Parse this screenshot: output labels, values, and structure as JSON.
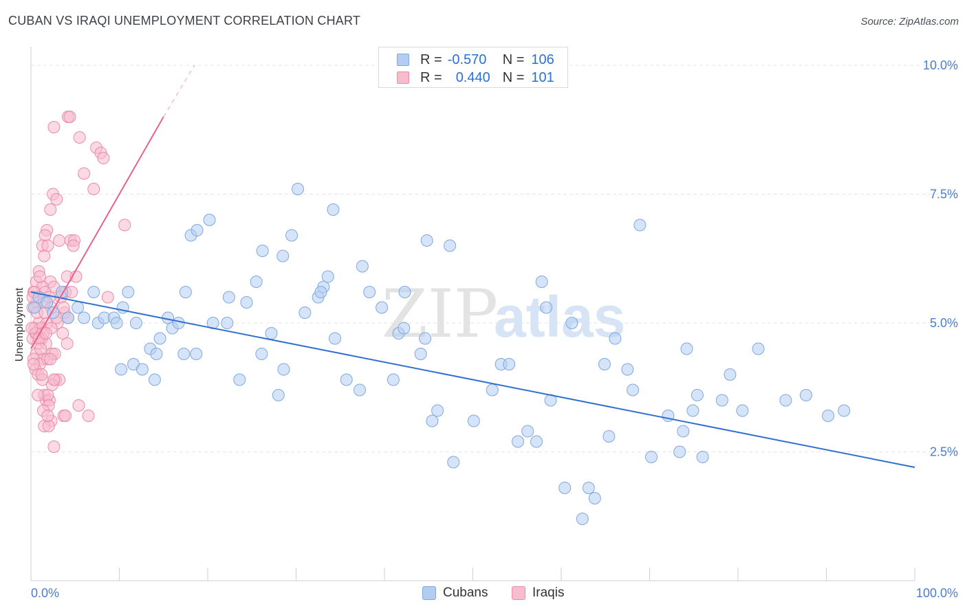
{
  "title": "CUBAN VS IRAQI UNEMPLOYMENT CORRELATION CHART",
  "source": "Source: ZipAtlas.com",
  "watermark": {
    "part1": "ZIP",
    "part2": "atlas"
  },
  "legend": {
    "rows": [
      {
        "r_label": "R =",
        "r_value": "-0.570",
        "n_label": "N =",
        "n_value": "106"
      },
      {
        "r_label": "R =",
        "r_value": "0.440",
        "n_label": "N =",
        "n_value": "101"
      }
    ]
  },
  "bottom_legend": [
    "Cubans",
    "Iraqis"
  ],
  "colors": {
    "cuban_fill": "#b3cdf2",
    "cuban_stroke": "#7fa8e0",
    "cuban_line": "#2f6fd0",
    "iraqi_fill": "#f7bccd",
    "iraqi_stroke": "#ea8bab",
    "iraqi_line": "#e8608f",
    "axis_text": "#4a7dd1",
    "grid": "#e4e4e4"
  },
  "chart_data": {
    "type": "scatter",
    "title": "CUBAN VS IRAQI UNEMPLOYMENT CORRELATION CHART",
    "xlabel": "",
    "ylabel": "Unemployment",
    "xlim": [
      0,
      100
    ],
    "ylim": [
      0,
      10.2
    ],
    "x_tick_labels": [
      "0.0%",
      "100.0%"
    ],
    "y_ticks": [
      2.5,
      5.0,
      7.5,
      10.0
    ],
    "y_tick_labels": [
      "2.5%",
      "5.0%",
      "7.5%",
      "10.0%"
    ],
    "grid": "horizontal dashed",
    "legend_position": "top-center",
    "series": [
      {
        "name": "Cubans",
        "R": -0.57,
        "N": 106,
        "trend": {
          "x": [
            0,
            100
          ],
          "y": [
            5.6,
            2.2
          ]
        },
        "points": [
          [
            0.4,
            5.3
          ],
          [
            0.9,
            5.5
          ],
          [
            1.8,
            5.4
          ],
          [
            2.5,
            5.2
          ],
          [
            3.5,
            5.6
          ],
          [
            4.2,
            5.1
          ],
          [
            5.3,
            5.3
          ],
          [
            6.0,
            5.1
          ],
          [
            7.1,
            5.6
          ],
          [
            7.6,
            5.0
          ],
          [
            8.3,
            5.1
          ],
          [
            9.4,
            5.1
          ],
          [
            9.7,
            5.0
          ],
          [
            10.4,
            5.3
          ],
          [
            11.0,
            5.6
          ],
          [
            11.9,
            5.0
          ],
          [
            10.2,
            4.1
          ],
          [
            11.6,
            4.2
          ],
          [
            12.6,
            4.1
          ],
          [
            13.5,
            4.5
          ],
          [
            14.2,
            4.4
          ],
          [
            14.6,
            4.7
          ],
          [
            15.5,
            5.1
          ],
          [
            16.0,
            4.9
          ],
          [
            16.7,
            5.0
          ],
          [
            17.3,
            4.4
          ],
          [
            14.0,
            3.9
          ],
          [
            17.5,
            5.6
          ],
          [
            18.7,
            4.4
          ],
          [
            20.6,
            5.0
          ],
          [
            22.2,
            5.0
          ],
          [
            23.6,
            3.9
          ],
          [
            24.4,
            5.4
          ],
          [
            26.1,
            4.4
          ],
          [
            27.2,
            4.8
          ],
          [
            28.0,
            3.6
          ],
          [
            28.6,
            4.1
          ],
          [
            31.0,
            5.2
          ],
          [
            32.5,
            5.5
          ],
          [
            33.1,
            5.7
          ],
          [
            34.4,
            4.7
          ],
          [
            35.7,
            3.9
          ],
          [
            37.2,
            3.7
          ],
          [
            38.3,
            5.6
          ],
          [
            39.7,
            5.3
          ],
          [
            41.0,
            3.9
          ],
          [
            41.6,
            4.8
          ],
          [
            42.2,
            4.9
          ],
          [
            44.1,
            4.4
          ],
          [
            44.6,
            4.7
          ],
          [
            45.4,
            3.1
          ],
          [
            46.0,
            3.3
          ],
          [
            47.8,
            2.3
          ],
          [
            50.1,
            3.1
          ],
          [
            52.2,
            3.7
          ],
          [
            53.2,
            4.2
          ],
          [
            54.1,
            4.2
          ],
          [
            55.1,
            2.7
          ],
          [
            56.2,
            2.9
          ],
          [
            57.2,
            2.7
          ],
          [
            58.8,
            3.5
          ],
          [
            60.4,
            1.8
          ],
          [
            63.1,
            1.8
          ],
          [
            63.8,
            1.6
          ],
          [
            64.9,
            4.2
          ],
          [
            65.4,
            2.8
          ],
          [
            67.5,
            4.1
          ],
          [
            68.1,
            3.7
          ],
          [
            70.2,
            2.4
          ],
          [
            72.1,
            3.2
          ],
          [
            73.4,
            2.5
          ],
          [
            73.8,
            2.9
          ],
          [
            74.9,
            3.3
          ],
          [
            75.4,
            3.6
          ],
          [
            76.0,
            2.4
          ],
          [
            78.2,
            3.5
          ],
          [
            79.1,
            4.0
          ],
          [
            80.5,
            3.3
          ],
          [
            82.3,
            4.5
          ],
          [
            85.4,
            3.5
          ],
          [
            87.7,
            3.6
          ],
          [
            90.2,
            3.2
          ],
          [
            92.0,
            3.3
          ],
          [
            62.4,
            1.2
          ],
          [
            68.9,
            6.9
          ],
          [
            74.2,
            4.5
          ],
          [
            61.2,
            5.0
          ],
          [
            57.8,
            5.8
          ],
          [
            47.4,
            6.5
          ],
          [
            42.3,
            5.6
          ],
          [
            37.5,
            6.1
          ],
          [
            34.2,
            7.2
          ],
          [
            30.2,
            7.6
          ],
          [
            29.5,
            6.7
          ],
          [
            26.2,
            6.4
          ],
          [
            25.5,
            5.8
          ],
          [
            18.1,
            6.7
          ],
          [
            18.8,
            6.8
          ],
          [
            20.2,
            7.0
          ],
          [
            28.5,
            6.3
          ],
          [
            44.8,
            6.6
          ],
          [
            32.8,
            5.6
          ],
          [
            33.6,
            5.9
          ],
          [
            22.4,
            5.5
          ],
          [
            58.3,
            5.3
          ],
          [
            66.1,
            4.7
          ]
        ]
      },
      {
        "name": "Iraqis",
        "R": 0.44,
        "N": 101,
        "trend": {
          "x": [
            0,
            15
          ],
          "y": [
            4.5,
            9.0
          ]
        },
        "trend_dashed": {
          "x": [
            15,
            18.5
          ],
          "y": [
            9.0,
            10.0
          ]
        },
        "points": [
          [
            4.2,
            9.0
          ],
          [
            4.4,
            9.0
          ],
          [
            2.6,
            8.8
          ],
          [
            5.5,
            8.6
          ],
          [
            7.4,
            8.4
          ],
          [
            7.9,
            8.3
          ],
          [
            8.2,
            8.2
          ],
          [
            6.0,
            7.9
          ],
          [
            7.1,
            7.6
          ],
          [
            2.5,
            7.5
          ],
          [
            2.9,
            7.4
          ],
          [
            2.2,
            7.2
          ],
          [
            10.6,
            6.9
          ],
          [
            1.8,
            6.8
          ],
          [
            1.6,
            6.7
          ],
          [
            3.2,
            6.6
          ],
          [
            4.5,
            6.6
          ],
          [
            4.9,
            6.6
          ],
          [
            1.3,
            6.5
          ],
          [
            1.9,
            6.5
          ],
          [
            4.8,
            6.5
          ],
          [
            1.5,
            6.3
          ],
          [
            0.9,
            6.0
          ],
          [
            4.1,
            5.9
          ],
          [
            5.1,
            5.9
          ],
          [
            0.6,
            5.8
          ],
          [
            2.2,
            5.8
          ],
          [
            1.3,
            5.7
          ],
          [
            2.6,
            5.7
          ],
          [
            3.9,
            5.6
          ],
          [
            0.3,
            5.6
          ],
          [
            1.6,
            5.6
          ],
          [
            3.4,
            5.5
          ],
          [
            2.1,
            5.5
          ],
          [
            0.7,
            5.4
          ],
          [
            1.5,
            5.4
          ],
          [
            0.2,
            5.3
          ],
          [
            2.3,
            5.3
          ],
          [
            3.8,
            5.2
          ],
          [
            4.2,
            5.1
          ],
          [
            0.9,
            5.0
          ],
          [
            1.8,
            5.0
          ],
          [
            3.0,
            5.0
          ],
          [
            0.4,
            4.9
          ],
          [
            1.1,
            4.9
          ],
          [
            2.3,
            4.9
          ],
          [
            0.5,
            4.8
          ],
          [
            1.4,
            4.8
          ],
          [
            3.6,
            4.8
          ],
          [
            0.2,
            4.7
          ],
          [
            0.8,
            4.6
          ],
          [
            1.7,
            4.6
          ],
          [
            1.2,
            4.7
          ],
          [
            4.1,
            4.6
          ],
          [
            2.4,
            4.4
          ],
          [
            0.6,
            4.4
          ],
          [
            1.4,
            4.3
          ],
          [
            0.3,
            4.3
          ],
          [
            2.7,
            4.4
          ],
          [
            1.0,
            4.2
          ],
          [
            0.5,
            4.1
          ],
          [
            0.8,
            4.0
          ],
          [
            1.9,
            4.3
          ],
          [
            2.8,
            3.9
          ],
          [
            3.2,
            3.9
          ],
          [
            1.3,
            3.9
          ],
          [
            2.4,
            3.8
          ],
          [
            2.6,
            3.9
          ],
          [
            1.5,
            3.6
          ],
          [
            1.7,
            3.5
          ],
          [
            2.1,
            3.5
          ],
          [
            1.9,
            3.6
          ],
          [
            2.0,
            3.4
          ],
          [
            5.4,
            3.4
          ],
          [
            1.4,
            3.3
          ],
          [
            3.7,
            3.2
          ],
          [
            3.9,
            3.2
          ],
          [
            6.5,
            3.2
          ],
          [
            2.3,
            3.1
          ],
          [
            1.5,
            3.0
          ],
          [
            2.0,
            3.0
          ],
          [
            2.6,
            2.6
          ],
          [
            0.4,
            5.6
          ],
          [
            0.2,
            5.5
          ],
          [
            0.6,
            4.8
          ],
          [
            0.9,
            4.7
          ],
          [
            1.7,
            4.8
          ],
          [
            0.3,
            4.2
          ],
          [
            1.0,
            5.9
          ],
          [
            4.6,
            5.6
          ],
          [
            3.7,
            5.3
          ],
          [
            8.7,
            5.5
          ],
          [
            0.7,
            5.2
          ],
          [
            1.1,
            4.5
          ],
          [
            2.9,
            5.1
          ],
          [
            1.6,
            5.2
          ],
          [
            0.1,
            4.9
          ],
          [
            2.2,
            4.3
          ],
          [
            0.8,
            3.6
          ],
          [
            1.9,
            3.2
          ],
          [
            1.2,
            4.0
          ]
        ]
      }
    ]
  }
}
